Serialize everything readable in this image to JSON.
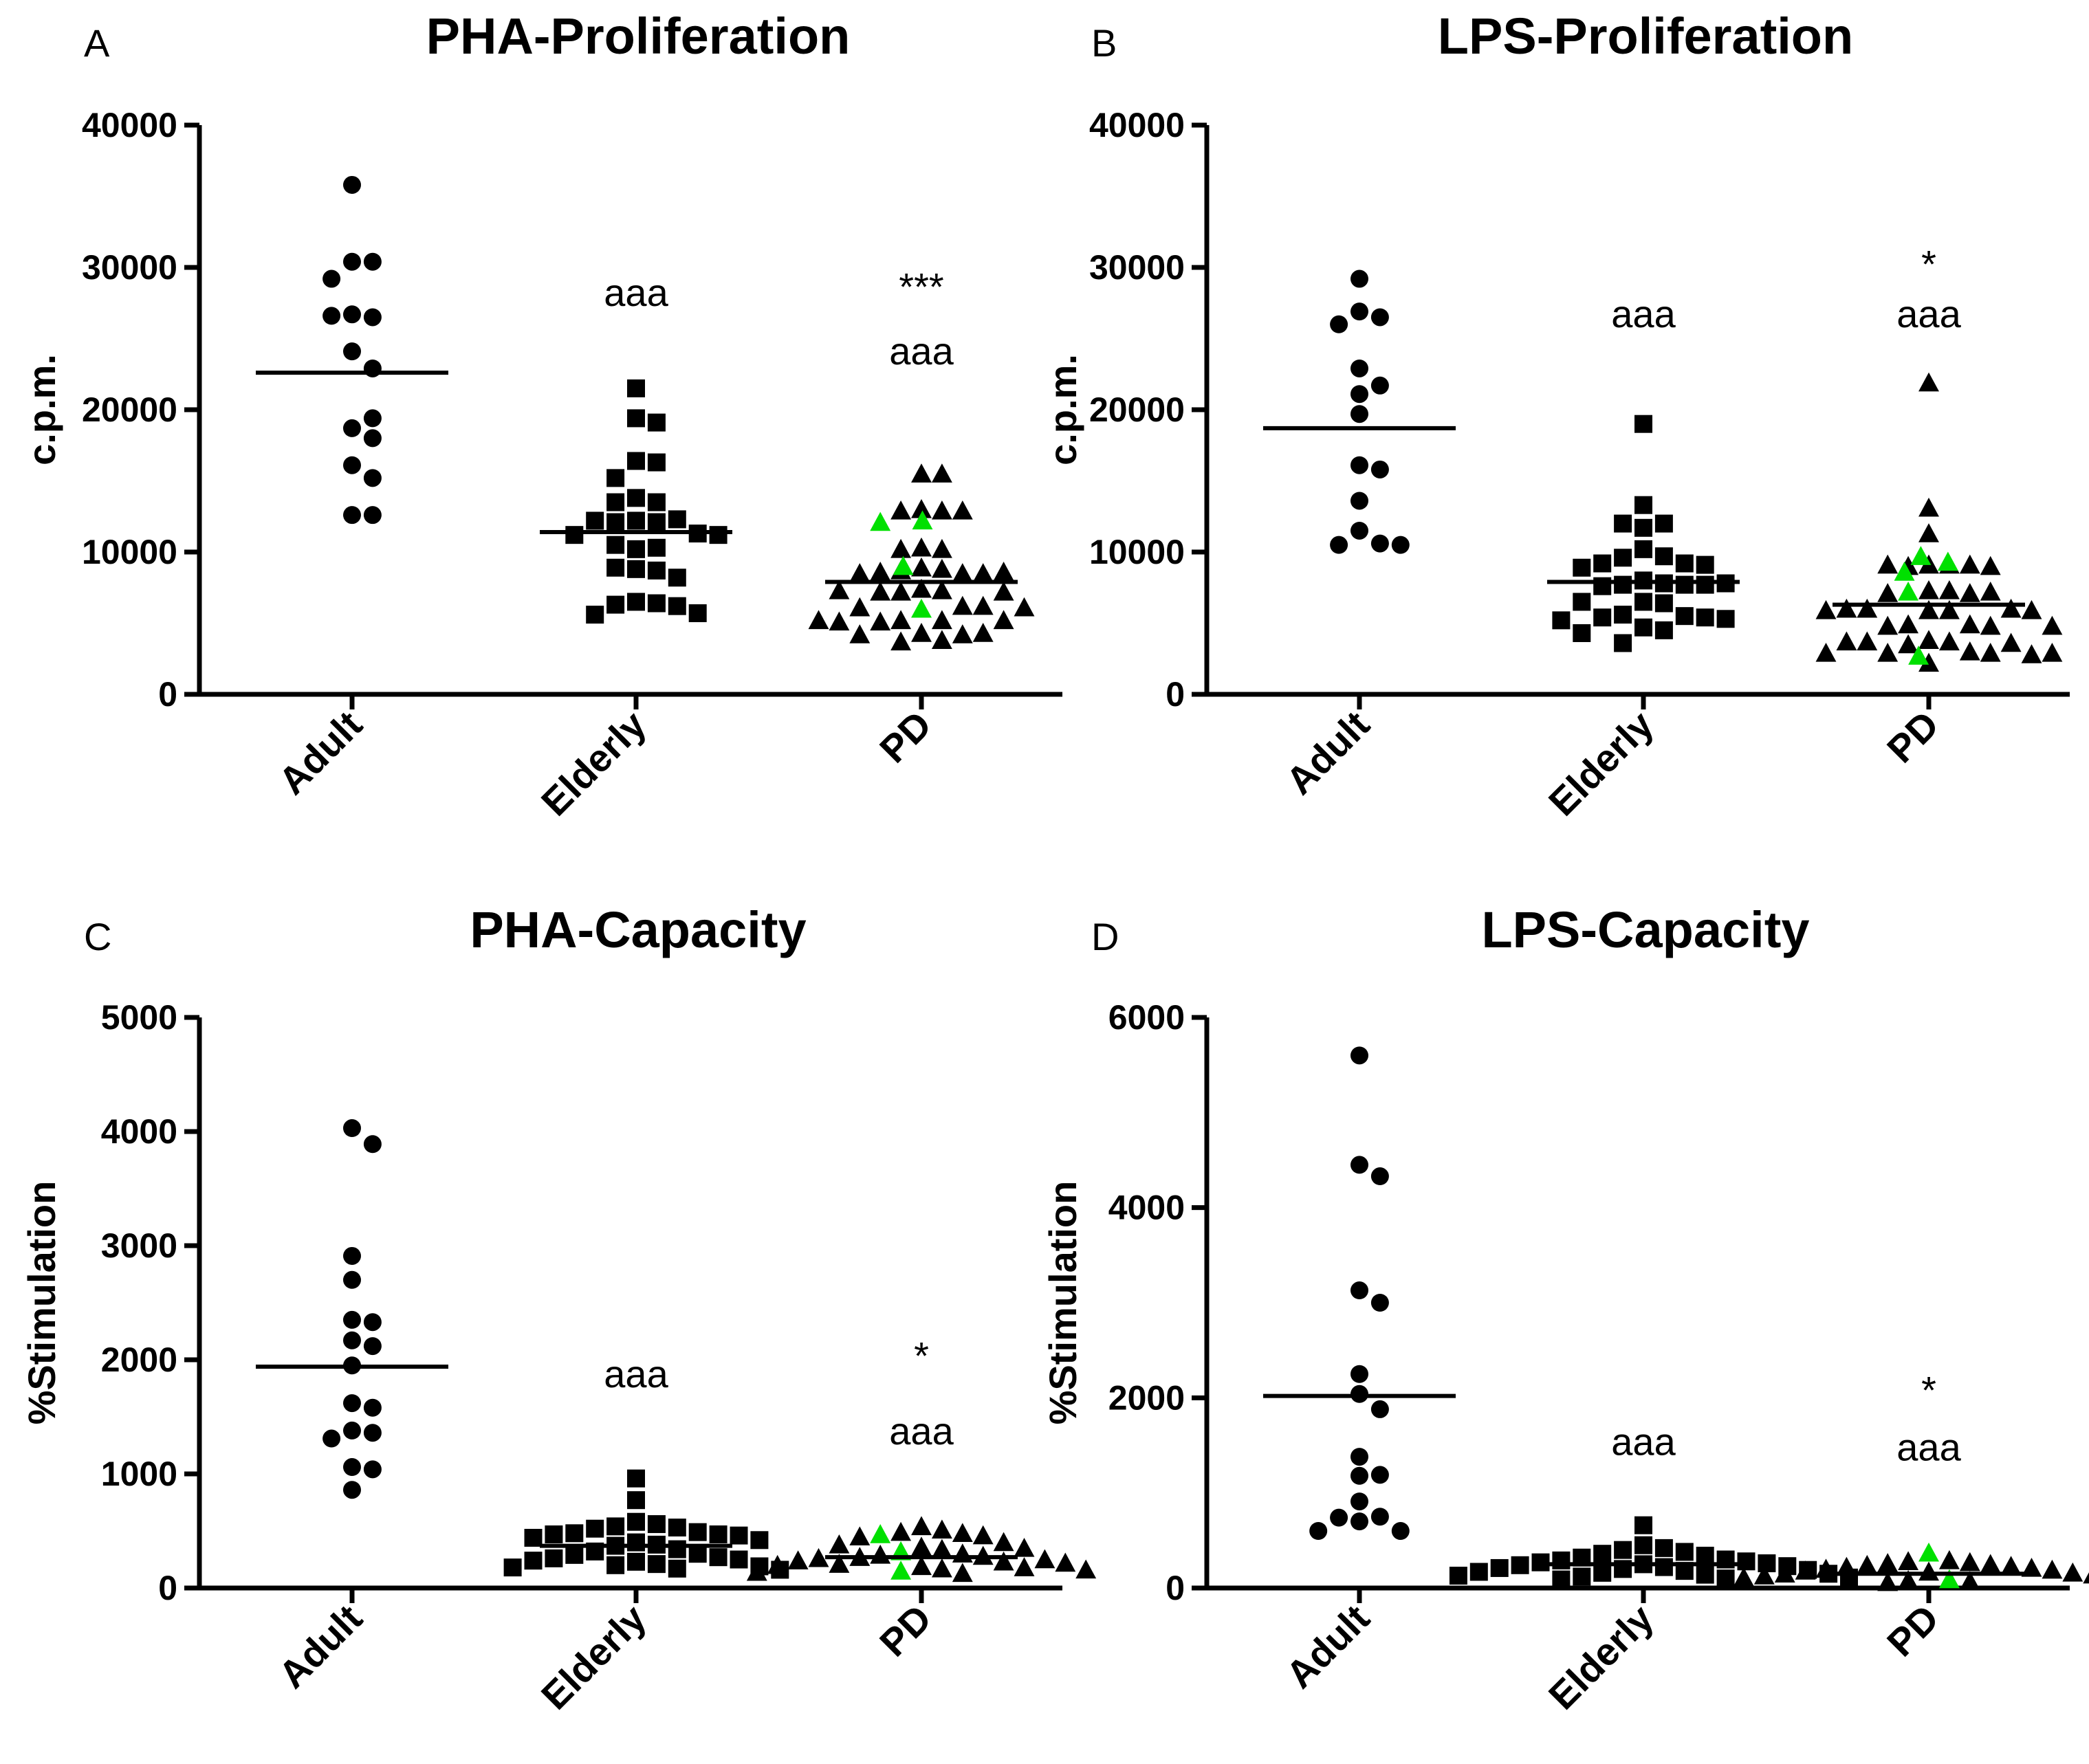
{
  "figure": {
    "colors": {
      "black": "#000000",
      "highlight": "#00e000",
      "background": "#ffffff"
    }
  },
  "chart_data": [
    {
      "id": "A",
      "panel_letter": "A",
      "type": "scatter",
      "title": "PHA-Proliferation",
      "ylabel": "c.p.m.",
      "ylim": [
        0,
        40000
      ],
      "yticks": [
        0,
        10000,
        20000,
        30000,
        40000
      ],
      "ytick_labels": [
        "0",
        "10000",
        "20000",
        "30000",
        "40000"
      ],
      "categories": [
        "Adult",
        "Elderly",
        "PD"
      ],
      "series": [
        {
          "name": "Adult",
          "marker": "circle",
          "mean": 22600,
          "values": [
            35800,
            30400,
            30400,
            29200,
            26700,
            26500,
            26600,
            24100,
            22900,
            18700,
            19400,
            18000,
            16100,
            15200,
            12600,
            12600
          ],
          "green_values": []
        },
        {
          "name": "Elderly",
          "marker": "square",
          "mean": 11400,
          "values": [
            21500,
            19400,
            19100,
            16400,
            16300,
            15200,
            13800,
            13500,
            13500,
            12200,
            12300,
            12200,
            12100,
            12100,
            11300,
            11200,
            11200,
            10200,
            10300,
            10500,
            8800,
            8700,
            8900,
            8200,
            6500,
            6400,
            6300,
            6200,
            5600,
            5700
          ],
          "green_values": []
        },
        {
          "name": "PD",
          "marker": "triangle",
          "mean": 7900,
          "values": [
            15500,
            15500,
            13000,
            12900,
            12900,
            12900,
            12100,
            10300,
            10200,
            10200,
            8900,
            8800,
            8700,
            8500,
            8600,
            8500,
            8500,
            8600,
            7400,
            7300,
            7200,
            7300,
            7200,
            7200,
            6200,
            6200,
            6100,
            6100,
            6000,
            5200,
            5200,
            5100,
            5200,
            5100,
            5200,
            4300,
            4200,
            4300,
            4200,
            3800,
            3700
          ],
          "green_values": [
            12200,
            12100,
            9000,
            6000
          ]
        }
      ],
      "annotations": [
        {
          "x": "Elderly",
          "text": "aaa",
          "y": 27300
        },
        {
          "x": "PD",
          "text": "***",
          "y": 27700
        },
        {
          "x": "PD",
          "text": "aaa",
          "y": 23200
        }
      ]
    },
    {
      "id": "B",
      "panel_letter": "B",
      "type": "scatter",
      "title": "LPS-Proliferation",
      "ylabel": "c.p.m.",
      "ylim": [
        0,
        40000
      ],
      "yticks": [
        0,
        10000,
        20000,
        30000,
        40000
      ],
      "ytick_labels": [
        "0",
        "10000",
        "20000",
        "30000",
        "40000"
      ],
      "categories": [
        "Adult",
        "Elderly",
        "PD"
      ],
      "series": [
        {
          "name": "Adult",
          "marker": "circle",
          "mean": 18700,
          "values": [
            29200,
            26900,
            26500,
            26000,
            22900,
            21700,
            21100,
            19700,
            16100,
            15800,
            13600,
            11500,
            10600,
            10500,
            10500
          ],
          "green_values": []
        },
        {
          "name": "Elderly",
          "marker": "square",
          "mean": 7900,
          "values": [
            19000,
            13300,
            12000,
            12000,
            11700,
            10200,
            9700,
            9600,
            9200,
            9200,
            9100,
            8900,
            8000,
            7800,
            7700,
            7700,
            7600,
            7800,
            7700,
            6500,
            6500,
            6400,
            5600,
            5500,
            5400,
            5400,
            5300,
            5200,
            4700,
            4500,
            4300,
            3600
          ],
          "green_values": []
        },
        {
          "name": "PD",
          "marker": "triangle",
          "mean": 6300,
          "values": [
            21900,
            13100,
            11300,
            9100,
            9100,
            9000,
            9100,
            9100,
            9000,
            7300,
            7300,
            7200,
            7100,
            7100,
            7200,
            6000,
            6000,
            5900,
            5900,
            6000,
            5900,
            5900,
            4900,
            4900,
            4800,
            4800,
            4800,
            3800,
            3700,
            3700,
            3600,
            3700,
            3500,
            3000,
            2900,
            2900,
            2800,
            2900,
            2900,
            2200
          ],
          "green_values": [
            9700,
            9300,
            8600,
            7200,
            2700
          ]
        }
      ],
      "annotations": [
        {
          "x": "Elderly",
          "text": "aaa",
          "y": 25800
        },
        {
          "x": "PD",
          "text": "*",
          "y": 29300
        },
        {
          "x": "PD",
          "text": "aaa",
          "y": 25800
        }
      ]
    },
    {
      "id": "C",
      "panel_letter": "C",
      "type": "scatter",
      "title": "PHA-Capacity",
      "ylabel": "%Stimulation",
      "ylim": [
        0,
        5000
      ],
      "yticks": [
        0,
        1000,
        2000,
        3000,
        4000,
        5000
      ],
      "ytick_labels": [
        "0",
        "1000",
        "2000",
        "3000",
        "4000",
        "5000"
      ],
      "categories": [
        "Adult",
        "Elderly",
        "PD"
      ],
      "series": [
        {
          "name": "Adult",
          "marker": "circle",
          "mean": 1940,
          "values": [
            4030,
            3890,
            2910,
            2700,
            2350,
            2330,
            2170,
            2120,
            1950,
            1620,
            1580,
            1380,
            1360,
            1310,
            1060,
            1040,
            860
          ],
          "green_values": []
        },
        {
          "name": "Elderly",
          "marker": "square",
          "mean": 370,
          "values": [
            960,
            770,
            580,
            560,
            540,
            530,
            520,
            490,
            480,
            470,
            470,
            460,
            440,
            420,
            400,
            380,
            370,
            340,
            320,
            300,
            290,
            270,
            260,
            250,
            240,
            230,
            210,
            200,
            190,
            180,
            170,
            160
          ],
          "green_values": []
        },
        {
          "name": "PD",
          "marker": "triangle",
          "mean": 270,
          "values": [
            540,
            510,
            490,
            480,
            470,
            460,
            450,
            400,
            380,
            360,
            350,
            340,
            320,
            300,
            290,
            280,
            270,
            260,
            250,
            240,
            230,
            220,
            210,
            200,
            190,
            180,
            170,
            160,
            150,
            140,
            130
          ],
          "green_values": [
            470,
            320,
            150
          ]
        }
      ],
      "annotations": [
        {
          "x": "Elderly",
          "text": "aaa",
          "y": 1760
        },
        {
          "x": "PD",
          "text": "*",
          "y": 1920
        },
        {
          "x": "PD",
          "text": "aaa",
          "y": 1260
        }
      ]
    },
    {
      "id": "D",
      "panel_letter": "D",
      "type": "scatter",
      "title": "LPS-Capacity",
      "ylabel": "%Stimulation",
      "ylim": [
        0,
        6000
      ],
      "yticks": [
        0,
        2000,
        4000,
        6000
      ],
      "ytick_labels": [
        "0",
        "2000",
        "4000",
        "6000"
      ],
      "categories": [
        "Adult",
        "Elderly",
        "PD"
      ],
      "series": [
        {
          "name": "Adult",
          "marker": "circle",
          "mean": 2020,
          "values": [
            5600,
            4450,
            4330,
            3130,
            3000,
            2250,
            2040,
            1880,
            1380,
            1190,
            1180,
            910,
            750,
            740,
            700,
            600,
            600
          ],
          "green_values": []
        },
        {
          "name": "Elderly",
          "marker": "square",
          "mean": 250,
          "values": [
            660,
            450,
            420,
            400,
            380,
            360,
            340,
            320,
            300,
            290,
            280,
            270,
            260,
            250,
            240,
            230,
            220,
            210,
            200,
            190,
            180,
            170,
            160,
            150,
            140,
            130,
            120,
            110,
            100,
            90
          ],
          "green_values": []
        },
        {
          "name": "PD",
          "marker": "triangle",
          "mean": 150,
          "values": [
            370,
            290,
            280,
            270,
            260,
            250,
            240,
            230,
            220,
            210,
            200,
            190,
            180,
            170,
            160,
            150,
            140,
            130,
            120,
            110,
            100,
            90,
            80,
            70,
            60
          ],
          "green_values": [
            370,
            90
          ]
        }
      ],
      "annotations": [
        {
          "x": "Elderly",
          "text": "aaa",
          "y": 1400
        },
        {
          "x": "PD",
          "text": "*",
          "y": 1940
        },
        {
          "x": "PD",
          "text": "aaa",
          "y": 1340
        }
      ]
    }
  ]
}
